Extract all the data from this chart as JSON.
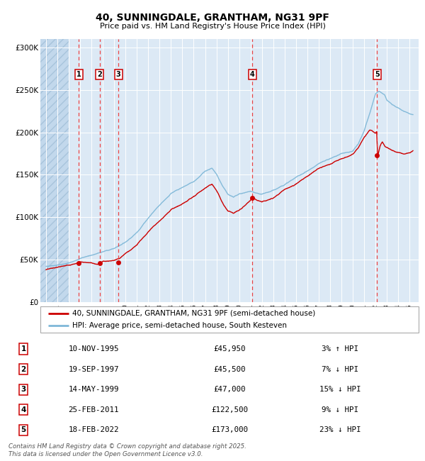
{
  "title_line1": "40, SUNNINGDALE, GRANTHAM, NG31 9PF",
  "title_line2": "Price paid vs. HM Land Registry's House Price Index (HPI)",
  "hpi_color": "#7fb8d8",
  "price_color": "#cc0000",
  "bg_color": "#dce9f5",
  "vline_color": "#ee3333",
  "sale_points": [
    {
      "label": "1",
      "date_year": 1995.87,
      "price": 45950
    },
    {
      "label": "2",
      "date_year": 1997.72,
      "price": 45500
    },
    {
      "label": "3",
      "date_year": 1999.37,
      "price": 47000
    },
    {
      "label": "4",
      "date_year": 2011.15,
      "price": 122500
    },
    {
      "label": "5",
      "date_year": 2022.13,
      "price": 173000
    }
  ],
  "legend_entries": [
    "40, SUNNINGDALE, GRANTHAM, NG31 9PF (semi-detached house)",
    "HPI: Average price, semi-detached house, South Kesteven"
  ],
  "table_rows": [
    [
      "1",
      "10-NOV-1995",
      "£45,950",
      "3% ↑ HPI"
    ],
    [
      "2",
      "19-SEP-1997",
      "£45,500",
      "7% ↓ HPI"
    ],
    [
      "3",
      "14-MAY-1999",
      "£47,000",
      "15% ↓ HPI"
    ],
    [
      "4",
      "25-FEB-2011",
      "£122,500",
      "9% ↓ HPI"
    ],
    [
      "5",
      "18-FEB-2022",
      "£173,000",
      "23% ↓ HPI"
    ]
  ],
  "footnote": "Contains HM Land Registry data © Crown copyright and database right 2025.\nThis data is licensed under the Open Government Licence v3.0.",
  "ylim": [
    0,
    310000
  ],
  "xlim_start": 1992.5,
  "xlim_end": 2025.8,
  "hpi_base_points": [
    [
      1993.0,
      42000
    ],
    [
      1994.0,
      44000
    ],
    [
      1995.0,
      46000
    ],
    [
      1995.5,
      48000
    ],
    [
      1996.0,
      52000
    ],
    [
      1997.0,
      56000
    ],
    [
      1998.0,
      60000
    ],
    [
      1999.0,
      64000
    ],
    [
      2000.0,
      72000
    ],
    [
      2001.0,
      84000
    ],
    [
      2002.0,
      102000
    ],
    [
      2003.0,
      118000
    ],
    [
      2004.0,
      132000
    ],
    [
      2005.0,
      138000
    ],
    [
      2006.0,
      145000
    ],
    [
      2007.0,
      158000
    ],
    [
      2007.6,
      162000
    ],
    [
      2008.0,
      155000
    ],
    [
      2008.5,
      142000
    ],
    [
      2009.0,
      132000
    ],
    [
      2009.5,
      128000
    ],
    [
      2010.0,
      132000
    ],
    [
      2011.0,
      135000
    ],
    [
      2011.5,
      132000
    ],
    [
      2012.0,
      130000
    ],
    [
      2013.0,
      134000
    ],
    [
      2014.0,
      142000
    ],
    [
      2015.0,
      150000
    ],
    [
      2016.0,
      158000
    ],
    [
      2017.0,
      166000
    ],
    [
      2018.0,
      172000
    ],
    [
      2019.0,
      178000
    ],
    [
      2020.0,
      182000
    ],
    [
      2020.5,
      190000
    ],
    [
      2021.0,
      205000
    ],
    [
      2021.5,
      225000
    ],
    [
      2022.0,
      248000
    ],
    [
      2022.3,
      252000
    ],
    [
      2022.8,
      248000
    ],
    [
      2023.0,
      242000
    ],
    [
      2023.5,
      236000
    ],
    [
      2024.0,
      232000
    ],
    [
      2024.5,
      228000
    ],
    [
      2025.0,
      226000
    ],
    [
      2025.3,
      225000
    ]
  ],
  "price_base_points": [
    [
      1993.0,
      38000
    ],
    [
      1994.0,
      40000
    ],
    [
      1995.0,
      43000
    ],
    [
      1995.5,
      45000
    ],
    [
      1996.0,
      48000
    ],
    [
      1997.0,
      47000
    ],
    [
      1997.5,
      46000
    ],
    [
      1998.0,
      50000
    ],
    [
      1999.0,
      50000
    ],
    [
      1999.5,
      52000
    ],
    [
      2000.0,
      58000
    ],
    [
      2001.0,
      68000
    ],
    [
      2002.0,
      84000
    ],
    [
      2003.0,
      98000
    ],
    [
      2004.0,
      112000
    ],
    [
      2005.0,
      118000
    ],
    [
      2006.0,
      126000
    ],
    [
      2007.0,
      136000
    ],
    [
      2007.6,
      140000
    ],
    [
      2008.0,
      132000
    ],
    [
      2008.5,
      118000
    ],
    [
      2009.0,
      108000
    ],
    [
      2009.5,
      106000
    ],
    [
      2010.0,
      110000
    ],
    [
      2011.0,
      122000
    ],
    [
      2011.2,
      125000
    ],
    [
      2011.5,
      122000
    ],
    [
      2012.0,
      120000
    ],
    [
      2013.0,
      126000
    ],
    [
      2014.0,
      136000
    ],
    [
      2015.0,
      142000
    ],
    [
      2016.0,
      150000
    ],
    [
      2017.0,
      158000
    ],
    [
      2018.0,
      164000
    ],
    [
      2019.0,
      170000
    ],
    [
      2020.0,
      174000
    ],
    [
      2020.5,
      182000
    ],
    [
      2021.0,
      195000
    ],
    [
      2021.5,
      204000
    ],
    [
      2022.0,
      200000
    ],
    [
      2022.1,
      202000
    ],
    [
      2022.2,
      173000
    ],
    [
      2022.4,
      185000
    ],
    [
      2022.6,
      190000
    ],
    [
      2022.8,
      186000
    ],
    [
      2023.0,
      184000
    ],
    [
      2023.5,
      180000
    ],
    [
      2024.0,
      178000
    ],
    [
      2024.5,
      176000
    ],
    [
      2025.0,
      178000
    ],
    [
      2025.3,
      180000
    ]
  ]
}
